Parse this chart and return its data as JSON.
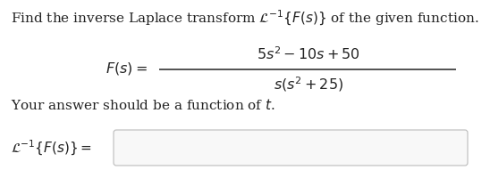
{
  "line1": "Find the inverse Laplace transform $\\mathcal{L}^{-1}\\{F(s)\\}$ of the given function.",
  "fs_label": "$F(s) =$",
  "numerator": "$5s^2 - 10s + 50$",
  "denominator": "$s(s^2 + 25)$",
  "line3": "Your answer should be a function of $t$.",
  "answer_label": "$\\mathcal{L}^{-1}\\{F(s)\\} =$",
  "bg_color": "#ffffff",
  "text_color": "#222222",
  "box_edge_color": "#bbbbbb",
  "box_face_color": "#f8f8f8",
  "fig_width": 5.48,
  "fig_height": 1.91,
  "dpi": 100
}
